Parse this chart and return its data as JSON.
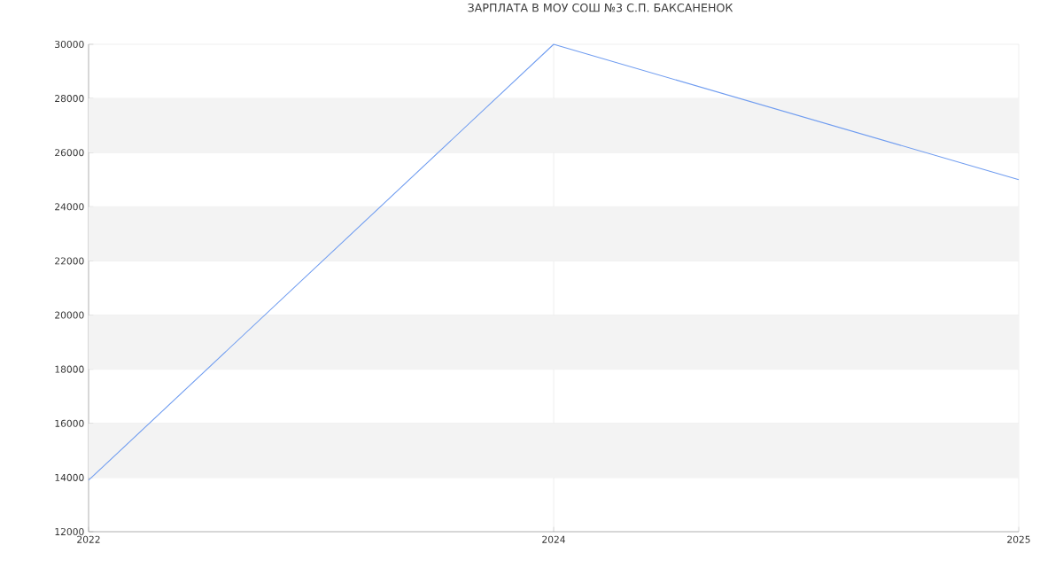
{
  "chart_data": {
    "type": "line",
    "title": "ЗАРПЛАТА В МОУ СОШ №3 С.П. БАКСАНЕНОК",
    "categories": [
      "2022",
      "2024",
      "2025"
    ],
    "series": [
      {
        "color": "#6f9cf0",
        "values": [
          13900,
          30000,
          25000
        ]
      }
    ],
    "ylim": [
      12000,
      30000
    ],
    "yticks": [
      12000,
      14000,
      16000,
      18000,
      20000,
      22000,
      24000,
      26000,
      28000,
      30000
    ],
    "grid": true,
    "marker": "none",
    "line_style": "solid",
    "bands": [
      {
        "axis": "y",
        "from": 14000,
        "to": 16000,
        "color": "#f3f3f3"
      },
      {
        "axis": "y",
        "from": 18000,
        "to": 20000,
        "color": "#f3f3f3"
      },
      {
        "axis": "y",
        "from": 22000,
        "to": 24000,
        "color": "#f3f3f3"
      },
      {
        "axis": "y",
        "from": 26000,
        "to": 28000,
        "color": "#f3f3f3"
      }
    ]
  }
}
